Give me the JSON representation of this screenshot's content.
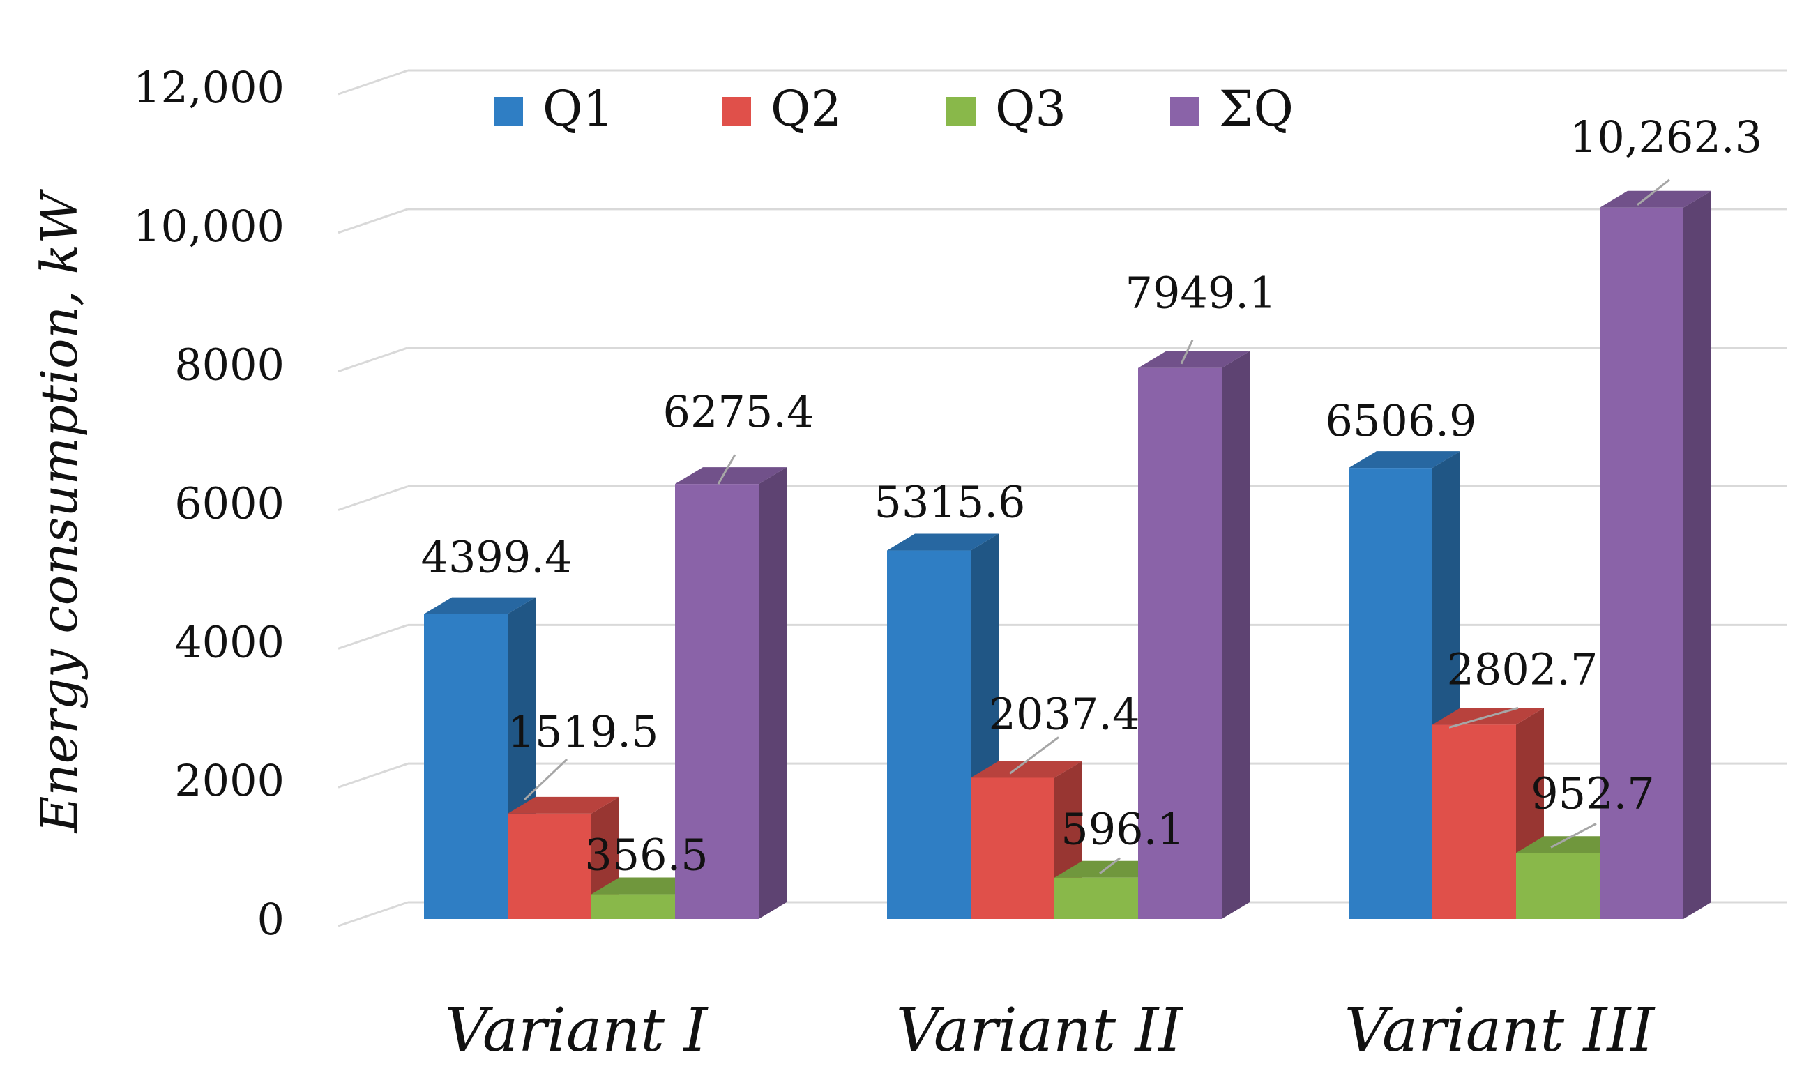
{
  "chart_data": {
    "type": "bar",
    "title": "",
    "xlabel": "",
    "ylabel": "Energy consumption, kW",
    "ylim": [
      0,
      12000
    ],
    "y_ticks": [
      0,
      2000,
      4000,
      6000,
      8000,
      10000,
      12000
    ],
    "y_tick_labels": [
      "0",
      "2000",
      "4000",
      "6000",
      "8000",
      "10,000",
      "12,000"
    ],
    "categories": [
      "Variant I",
      "Variant II",
      "Variant III"
    ],
    "series": [
      {
        "name": "Q1",
        "color": "#2F7EC4",
        "values": [
          4399.4,
          5315.6,
          6506.9
        ],
        "labels": [
          "4399.4",
          "5315.6",
          "6506.9"
        ]
      },
      {
        "name": "Q2",
        "color": "#E0504A",
        "values": [
          1519.5,
          2037.4,
          2802.7
        ],
        "labels": [
          "1519.5",
          "2037.4",
          "2802.7"
        ]
      },
      {
        "name": "Q3",
        "color": "#89B84A",
        "values": [
          356.5,
          596.1,
          952.7
        ],
        "labels": [
          "356.5",
          "596.1",
          "952.7"
        ]
      },
      {
        "name": "ΣQ",
        "color": "#8A63A8",
        "values": [
          6275.4,
          7949.1,
          10262.3
        ],
        "labels": [
          "6275.4",
          "7949.1",
          "10,262.3"
        ]
      }
    ],
    "legend_position": "top",
    "grid": true,
    "style": "3d-clustered-column"
  }
}
